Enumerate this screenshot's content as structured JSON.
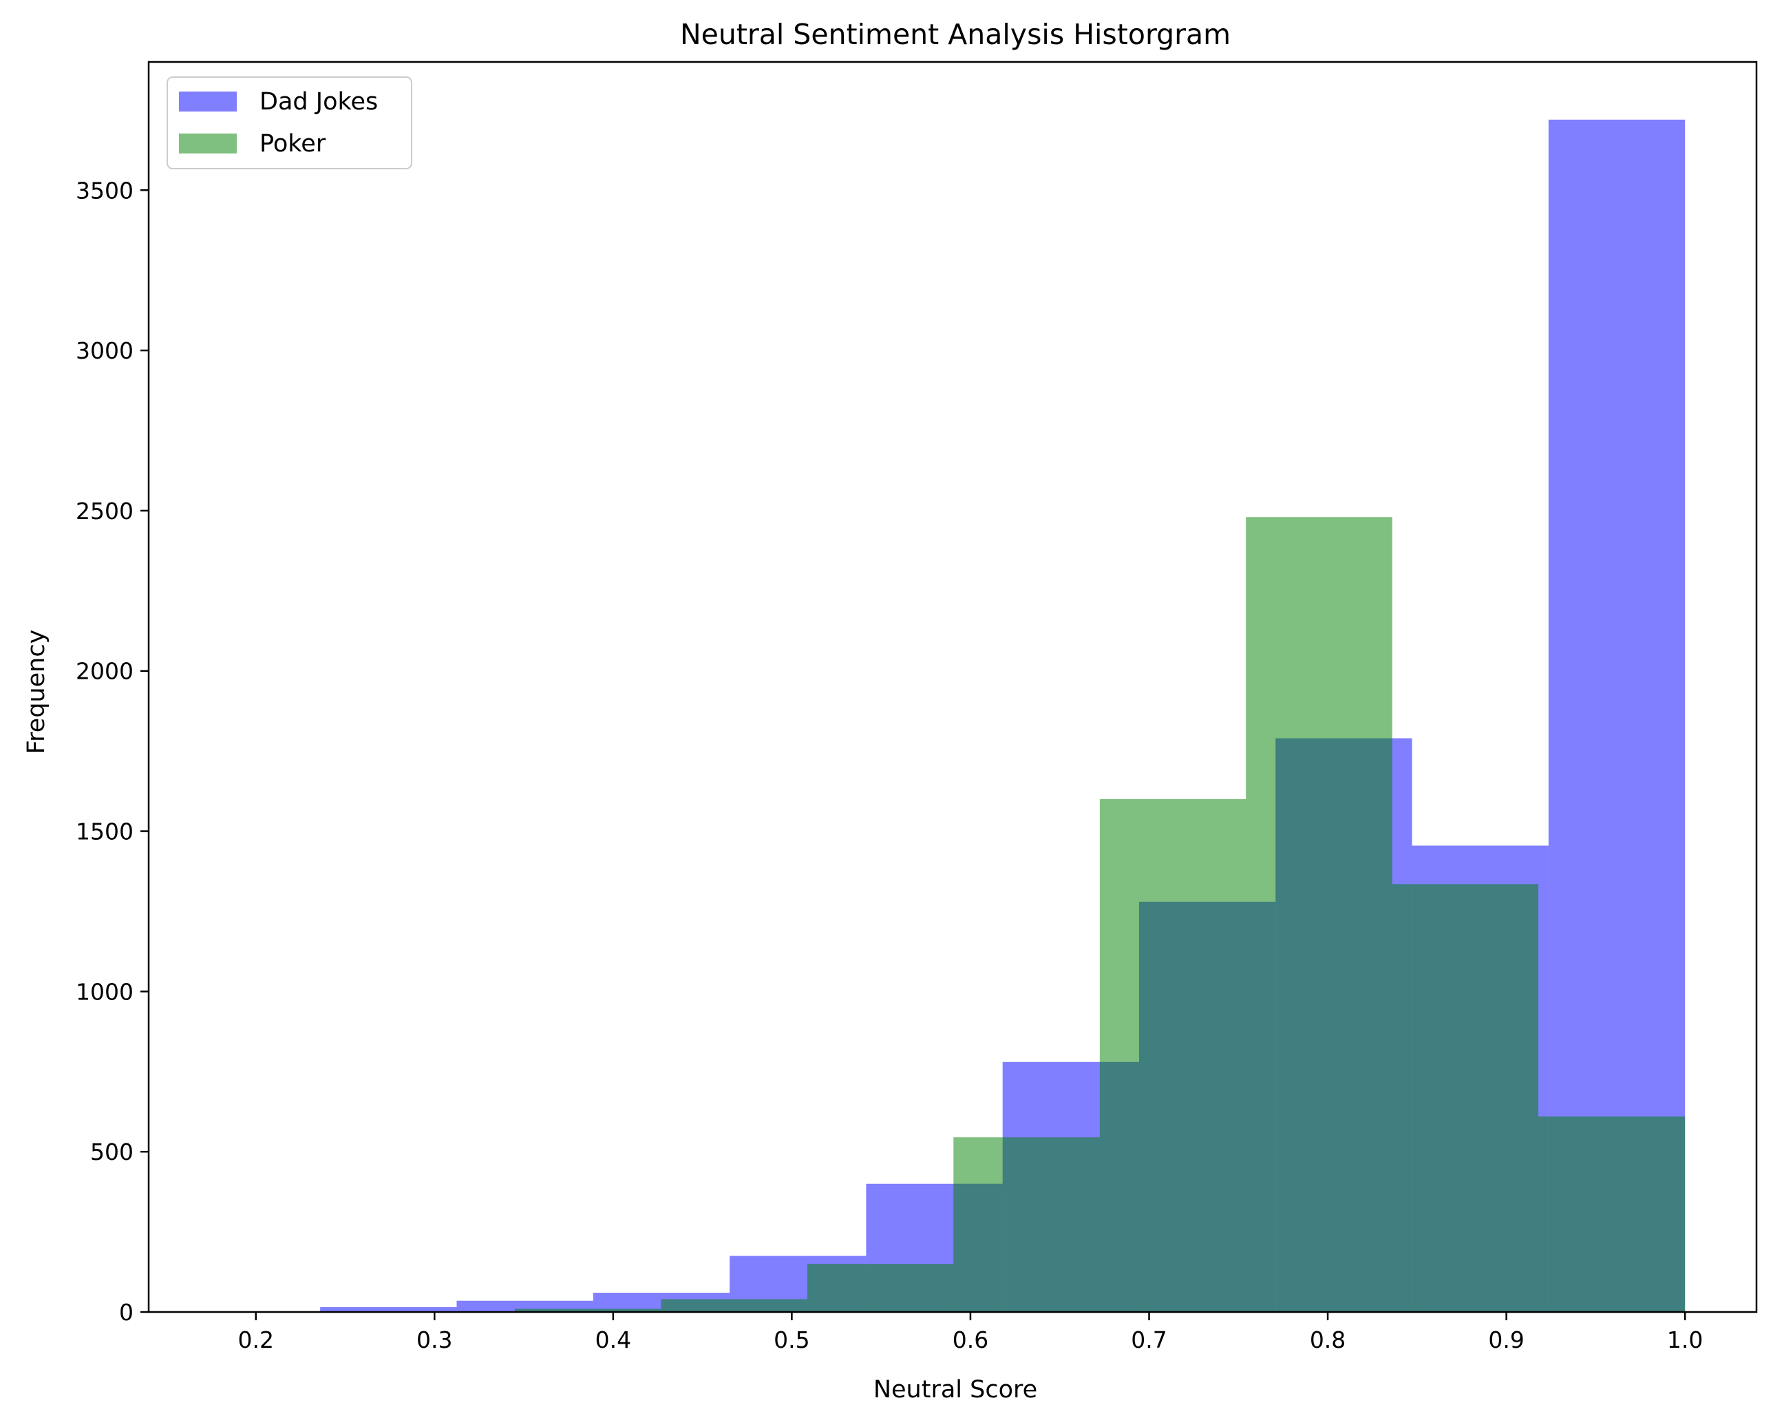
{
  "chart_data": {
    "type": "bar",
    "subtype": "overlapping-histogram",
    "title": "Neutral Sentiment Analysis Historgram",
    "xlabel": "Neutral Score",
    "ylabel": "Frequency",
    "xlim": [
      0.14,
      1.04
    ],
    "ylim": [
      0,
      3900
    ],
    "xticks": [
      0.2,
      0.3,
      0.4,
      0.5,
      0.6,
      0.7,
      0.8,
      0.9,
      1.0
    ],
    "xtick_labels": [
      "0.2",
      "0.3",
      "0.4",
      "0.5",
      "0.6",
      "0.7",
      "0.8",
      "0.9",
      "1.0"
    ],
    "yticks": [
      0,
      500,
      1000,
      1500,
      2000,
      2500,
      3000,
      3500
    ],
    "ytick_labels": [
      "0",
      "500",
      "1000",
      "1500",
      "2000",
      "2500",
      "3000",
      "3500"
    ],
    "grid": false,
    "legend_position": "top-left",
    "series": [
      {
        "name": "Dad Jokes",
        "color": "#0000ff",
        "alpha": 0.5,
        "bin_edges": [
          0.236,
          0.3124,
          0.3888,
          0.4652,
          0.5416,
          0.618,
          0.6944,
          0.7708,
          0.8472,
          0.9236,
          1.0
        ],
        "values": [
          15,
          35,
          60,
          175,
          400,
          780,
          1280,
          1790,
          1455,
          3720
        ]
      },
      {
        "name": "Poker",
        "color": "#008000",
        "alpha": 0.5,
        "bin_edges": [
          0.345,
          0.4268,
          0.5087,
          0.5905,
          0.6724,
          0.7542,
          0.8361,
          0.9179,
          1.0
        ],
        "values": [
          10,
          40,
          150,
          545,
          1600,
          2480,
          1335,
          610
        ]
      }
    ]
  }
}
